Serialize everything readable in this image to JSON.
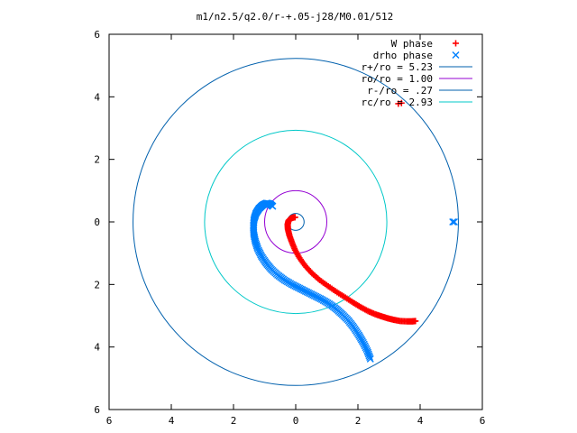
{
  "chart_data": {
    "type": "scatter",
    "title": "m1/n2.5/q2.0/r-+.05-j28/M0.01/512",
    "xlabel": "",
    "ylabel": "",
    "xlim": [
      -6,
      6
    ],
    "ylim": [
      -6,
      6
    ],
    "x_ticks": [
      -6,
      -4,
      -2,
      0,
      2,
      4,
      6
    ],
    "y_ticks": [
      -6,
      -4,
      -2,
      0,
      2,
      4,
      6
    ],
    "x_tick_labels": [
      "6",
      "4",
      "2",
      "0",
      "2",
      "4",
      "6"
    ],
    "y_tick_labels": [
      "6",
      "4",
      "2",
      "0",
      "2",
      "4",
      "6"
    ],
    "grid": false,
    "legend_position": "top-right",
    "series": [
      {
        "name": "W phase",
        "kind": "points",
        "marker": "+",
        "color": "#ff0000",
        "x": [
          3.85,
          3.74,
          3.58,
          3.36,
          3.15,
          2.95,
          2.76,
          2.55,
          2.32,
          2.08,
          1.85,
          1.6,
          1.33,
          1.05,
          0.77,
          0.52,
          0.3,
          0.12,
          -0.02,
          -0.12,
          -0.2,
          -0.25,
          -0.26,
          -0.23,
          -0.16,
          -0.08,
          -0.02,
          3.4,
          3.3
        ],
        "y": [
          -3.17,
          -3.18,
          -3.18,
          -3.17,
          -3.13,
          -3.08,
          -3.02,
          -2.95,
          -2.85,
          -2.72,
          -2.58,
          -2.42,
          -2.25,
          -2.06,
          -1.86,
          -1.64,
          -1.4,
          -1.15,
          -0.9,
          -0.66,
          -0.44,
          -0.24,
          -0.08,
          0.04,
          0.11,
          0.14,
          0.15,
          3.8,
          3.78
        ]
      },
      {
        "name": "drho phase",
        "kind": "points",
        "marker": "x",
        "color": "#0080ff",
        "x": [
          2.4,
          2.3,
          2.17,
          2.03,
          1.87,
          1.7,
          1.5,
          1.3,
          1.08,
          0.84,
          0.6,
          0.36,
          0.12,
          -0.12,
          -0.36,
          -0.58,
          -0.78,
          -0.95,
          -1.1,
          -1.22,
          -1.3,
          -1.35,
          -1.36,
          -1.34,
          -1.28,
          -1.18,
          -1.06,
          -0.94,
          -0.83,
          -0.74,
          5.05,
          5.1
        ],
        "y": [
          -4.38,
          -4.12,
          -3.86,
          -3.62,
          -3.38,
          -3.16,
          -2.96,
          -2.78,
          -2.62,
          -2.48,
          -2.36,
          -2.24,
          -2.12,
          -2.0,
          -1.86,
          -1.7,
          -1.52,
          -1.32,
          -1.1,
          -0.86,
          -0.62,
          -0.38,
          -0.14,
          0.08,
          0.27,
          0.43,
          0.54,
          0.6,
          0.58,
          0.5,
          0.0,
          0.0
        ]
      },
      {
        "name": "r+/ro = 5.23",
        "kind": "circle",
        "radius": 5.23,
        "color": "#0060ad"
      },
      {
        "name": "ro/ro = 1.00",
        "kind": "circle",
        "radius": 1.0,
        "color": "#9400d3"
      },
      {
        "name": "r-/ro = .27",
        "kind": "circle",
        "radius": 0.27,
        "color": "#0060ad"
      },
      {
        "name": "rc/ro = 2.93",
        "kind": "circle",
        "radius": 2.93,
        "color": "#00c8c8"
      }
    ]
  }
}
